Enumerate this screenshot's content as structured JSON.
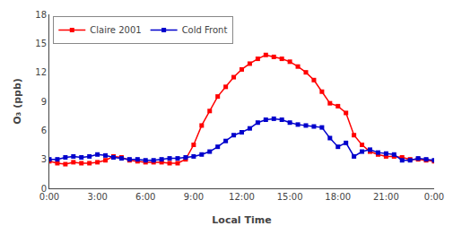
{
  "chart_data": {
    "type": "line",
    "xlabel": "Local Time",
    "ylabel": "O₃ (ppb)",
    "x": [
      0,
      0.5,
      1,
      1.5,
      2,
      2.5,
      3,
      3.5,
      4,
      4.5,
      5,
      5.5,
      6,
      6.5,
      7,
      7.5,
      8,
      8.5,
      9,
      9.5,
      10,
      10.5,
      11,
      11.5,
      12,
      12.5,
      13,
      13.5,
      14,
      14.5,
      15,
      15.5,
      16,
      16.5,
      17,
      17.5,
      18,
      18.5,
      19,
      19.5,
      20,
      20.5,
      21,
      21.5,
      22,
      22.5,
      23,
      23.5,
      24
    ],
    "series": [
      {
        "name": "Claire 2001",
        "color": "#ff0000",
        "marker": "square",
        "values": [
          2.8,
          2.6,
          2.5,
          2.7,
          2.6,
          2.6,
          2.7,
          2.9,
          3.3,
          3.2,
          2.9,
          2.8,
          2.7,
          2.7,
          2.7,
          2.6,
          2.6,
          3.0,
          4.5,
          6.5,
          8.0,
          9.5,
          10.5,
          11.5,
          12.3,
          12.9,
          13.4,
          13.8,
          13.6,
          13.4,
          13.1,
          12.6,
          12.0,
          11.2,
          10.0,
          8.8,
          8.5,
          7.8,
          5.5,
          4.5,
          3.8,
          3.5,
          3.3,
          3.3,
          3.2,
          3.0,
          3.0,
          2.9,
          2.8
        ]
      },
      {
        "name": "Cold Front",
        "color": "#0000cc",
        "marker": "square",
        "values": [
          3.0,
          3.0,
          3.2,
          3.3,
          3.2,
          3.3,
          3.5,
          3.4,
          3.2,
          3.1,
          3.0,
          3.0,
          2.9,
          2.9,
          3.0,
          3.1,
          3.1,
          3.2,
          3.3,
          3.5,
          3.8,
          4.3,
          4.9,
          5.5,
          5.8,
          6.2,
          6.8,
          7.1,
          7.2,
          7.1,
          6.8,
          6.6,
          6.5,
          6.4,
          6.3,
          5.2,
          4.3,
          4.7,
          3.3,
          3.8,
          4.0,
          3.7,
          3.6,
          3.5,
          2.9,
          2.9,
          3.1,
          3.0,
          2.9
        ]
      }
    ],
    "xlim": [
      0,
      24
    ],
    "ylim": [
      0,
      18
    ],
    "xticks": [
      {
        "value": 0,
        "label": "0:00"
      },
      {
        "value": 3,
        "label": "3:00"
      },
      {
        "value": 6,
        "label": "6:00"
      },
      {
        "value": 9,
        "label": "9:00"
      },
      {
        "value": 12,
        "label": "12:00"
      },
      {
        "value": 15,
        "label": "15:00"
      },
      {
        "value": 18,
        "label": "18:00"
      },
      {
        "value": 21,
        "label": "21:00"
      },
      {
        "value": 24,
        "label": "0:00"
      }
    ],
    "yticks": [
      0,
      3,
      6,
      9,
      12,
      15,
      18
    ],
    "grid": false,
    "legend": "upper left"
  }
}
